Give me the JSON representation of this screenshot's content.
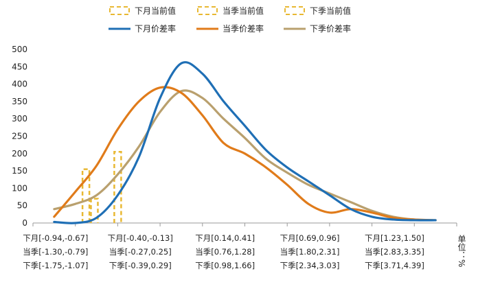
{
  "chart_data": {
    "type": "line",
    "ylim": [
      0,
      500
    ],
    "yticks": [
      0,
      50,
      100,
      150,
      200,
      250,
      300,
      350,
      400,
      450,
      500
    ],
    "x_category_count": 10,
    "x_tick_groups": [
      {
        "position": 0,
        "lines": [
          "下月[-0.94,-0.67]",
          "当季[-1.30,-0.79]",
          "下季[-1.75,-1.07]"
        ]
      },
      {
        "position": 2,
        "lines": [
          "下月[-0.40,-0.13]",
          "当季[-0.27,0.25]",
          "下季[-0.39,0.29]"
        ]
      },
      {
        "position": 4,
        "lines": [
          "下月[0.14,0.41]",
          "当季[0.76,1.28]",
          "下季[0.98,1.66]"
        ]
      },
      {
        "position": 6,
        "lines": [
          "下月[0.69,0.96]",
          "当季[1.80,2.31]",
          "下季[2.34,3.03]"
        ]
      },
      {
        "position": 8,
        "lines": [
          "下月[1.23,1.50]",
          "当季[2.83,3.35]",
          "下季[3.71,4.39]"
        ]
      }
    ],
    "unit_label": "单位：%",
    "series": [
      {
        "name": "下月价差率",
        "color": "#1f6fb5",
        "x": [
          0,
          0.5,
          1.0,
          1.5,
          2.0,
          2.5,
          3.0,
          3.5,
          4.0,
          4.5,
          5.0,
          5.5,
          6.0,
          6.5,
          7.0,
          7.5,
          8.0,
          8.5,
          9.0
        ],
        "values": [
          3,
          0,
          15,
          80,
          190,
          360,
          460,
          430,
          350,
          280,
          210,
          160,
          120,
          80,
          40,
          18,
          10,
          8,
          8
        ]
      },
      {
        "name": "当季价差率",
        "color": "#e07b1a",
        "x": [
          0,
          0.5,
          1.0,
          1.5,
          2.0,
          2.5,
          3.0,
          3.5,
          4.0,
          4.5,
          5.0,
          5.5,
          6.0,
          6.5,
          7.0,
          7.5,
          8.0,
          8.5,
          9.0
        ],
        "values": [
          18,
          90,
          165,
          270,
          350,
          390,
          375,
          310,
          230,
          200,
          160,
          110,
          55,
          30,
          40,
          30,
          15,
          10,
          8
        ]
      },
      {
        "name": "下季价差率",
        "color": "#b9a06e",
        "x": [
          0,
          0.5,
          1.0,
          1.5,
          2.0,
          2.5,
          3.0,
          3.5,
          4.0,
          4.5,
          5.0,
          5.5,
          6.0,
          6.5,
          7.0,
          7.5,
          8.0,
          8.5,
          9.0
        ],
        "values": [
          40,
          55,
          80,
          140,
          220,
          320,
          380,
          360,
          300,
          245,
          185,
          145,
          110,
          85,
          60,
          35,
          18,
          10,
          8
        ]
      }
    ],
    "current_value_markers": [
      {
        "name": "下月当前值",
        "x": 0.75,
        "value": 155
      },
      {
        "name": "当季当前值",
        "x": 0.95,
        "value": 70
      },
      {
        "name": "下季当前值",
        "x": 1.5,
        "value": 205
      }
    ],
    "legend": {
      "position": "top",
      "current_value_color": "#e8b832"
    }
  }
}
